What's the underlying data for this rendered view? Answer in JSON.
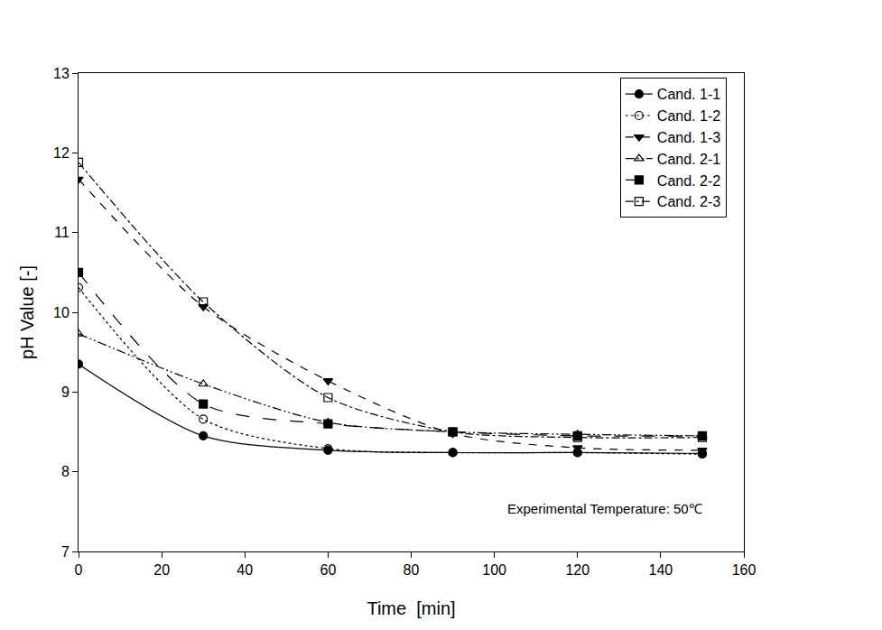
{
  "chart_data": {
    "type": "line",
    "x_label": "Time  [min]",
    "y_label": "pH Value [-]",
    "annotation": "Experimental Temperature: 50℃",
    "x": [
      0,
      30,
      60,
      90,
      120,
      150
    ],
    "series": [
      {
        "name": "Cand. 1-1",
        "color": "#000000",
        "marker": "circle",
        "line_style": "solid",
        "values": [
          9.35,
          8.45,
          8.27,
          8.24,
          8.24,
          8.23
        ]
      },
      {
        "name": "Cand. 1-2",
        "color": "#000000",
        "marker": "circle-open",
        "line_style": "dot",
        "values": [
          10.31,
          8.66,
          8.29,
          8.24,
          8.24,
          8.22
        ]
      },
      {
        "name": "Cand. 1-3",
        "color": "#000000",
        "marker": "triangle-down",
        "line_style": "dash",
        "values": [
          11.67,
          10.07,
          9.14,
          8.48,
          8.3,
          8.27
        ]
      },
      {
        "name": "Cand. 2-1",
        "color": "#000000",
        "marker": "triangle-up-open",
        "line_style": "dashdotdot",
        "values": [
          9.73,
          9.1,
          8.62,
          8.5,
          8.47,
          8.45
        ]
      },
      {
        "name": "Cand. 2-2",
        "color": "#000000",
        "marker": "square",
        "line_style": "longdash",
        "values": [
          10.5,
          8.85,
          8.6,
          8.5,
          8.45,
          8.45
        ]
      },
      {
        "name": "Cand. 2-3",
        "color": "#000000",
        "marker": "square-open",
        "line_style": "dashdot",
        "values": [
          11.88,
          10.13,
          8.93,
          8.5,
          8.43,
          8.43
        ]
      }
    ],
    "xlim": [
      0,
      160
    ],
    "xticks": [
      0,
      20,
      40,
      60,
      80,
      100,
      120,
      140,
      160
    ],
    "ylim": [
      7,
      13
    ],
    "yticks": [
      7,
      8,
      9,
      10,
      11,
      12,
      13
    ],
    "grid": false,
    "legend": "top right"
  }
}
